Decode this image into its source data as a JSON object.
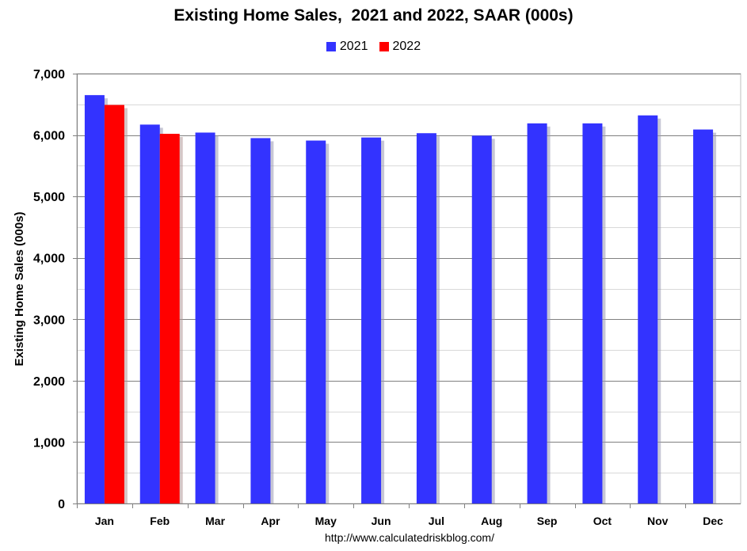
{
  "chart_data": {
    "type": "bar",
    "title": "Existing Home Sales,  2021 and 2022, SAAR (000s)",
    "ylabel": "Existing Home Sales (000s)",
    "xlabel": "",
    "categories": [
      "Jan",
      "Feb",
      "Mar",
      "Apr",
      "May",
      "Jun",
      "Jul",
      "Aug",
      "Sep",
      "Oct",
      "Nov",
      "Dec"
    ],
    "series": [
      {
        "name": "2021",
        "color": "#3333ff",
        "values": [
          6650,
          6170,
          6040,
          5950,
          5910,
          5960,
          6030,
          5990,
          6190,
          6190,
          6320,
          6090
        ]
      },
      {
        "name": "2022",
        "color": "#ff0000",
        "values": [
          6490,
          6020,
          null,
          null,
          null,
          null,
          null,
          null,
          null,
          null,
          null,
          null
        ]
      }
    ],
    "ylim": [
      0,
      7000
    ],
    "yticks": [
      0,
      1000,
      2000,
      3000,
      4000,
      5000,
      6000,
      7000
    ],
    "ytick_labels": [
      "0",
      "1,000",
      "2,000",
      "3,000",
      "4,000",
      "5,000",
      "6,000",
      "7,000"
    ],
    "grid": "horizontal",
    "legend_position": "top-center"
  },
  "source_note": "http://www.calculatedriskblog.com/"
}
